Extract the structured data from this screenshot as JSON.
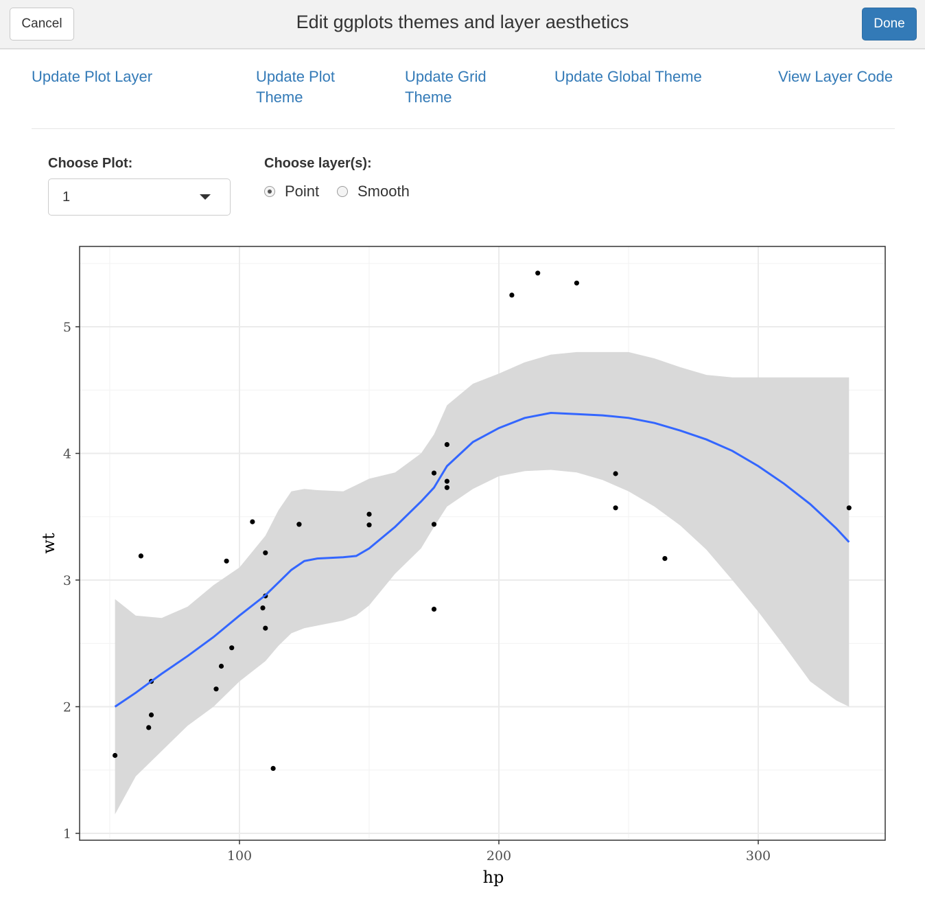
{
  "header": {
    "cancel_label": "Cancel",
    "title": "Edit ggplots themes and layer aesthetics",
    "done_label": "Done",
    "done_color": "#337ab7"
  },
  "tabs": [
    {
      "line1": "Update Plot Layer",
      "line2": ""
    },
    {
      "line1": "Update Plot",
      "line2": "Theme"
    },
    {
      "line1": "Update Grid",
      "line2": "Theme"
    },
    {
      "line1": "Update Global Theme",
      "line2": ""
    },
    {
      "line1": "View Layer Code",
      "line2": ""
    }
  ],
  "controls": {
    "choose_plot_label": "Choose Plot:",
    "choose_plot_value": "1",
    "choose_layer_label": "Choose layer(s):",
    "layers": [
      {
        "label": "Point",
        "checked": true
      },
      {
        "label": "Smooth",
        "checked": false
      }
    ]
  },
  "chart_data": {
    "type": "scatter",
    "xlabel": "hp",
    "ylabel": "wt",
    "xlim": [
      40,
      348
    ],
    "ylim": [
      1,
      5.6
    ],
    "xticks": [
      100,
      200,
      300
    ],
    "yticks": [
      1,
      2,
      3,
      4,
      5
    ],
    "grid": true,
    "legend": "none",
    "point_color": "#000000",
    "smooth_color": "#3366ff",
    "ribbon_color": "#d9d9d9",
    "points": [
      [
        110,
        2.62
      ],
      [
        110,
        2.875
      ],
      [
        93,
        2.32
      ],
      [
        110,
        3.215
      ],
      [
        175,
        3.44
      ],
      [
        105,
        3.46
      ],
      [
        245,
        3.57
      ],
      [
        62,
        3.19
      ],
      [
        95,
        3.15
      ],
      [
        123,
        3.44
      ],
      [
        123,
        3.44
      ],
      [
        180,
        4.07
      ],
      [
        180,
        3.73
      ],
      [
        180,
        3.78
      ],
      [
        205,
        5.25
      ],
      [
        215,
        5.424
      ],
      [
        230,
        5.345
      ],
      [
        66,
        2.2
      ],
      [
        52,
        1.615
      ],
      [
        65,
        1.835
      ],
      [
        97,
        2.465
      ],
      [
        150,
        3.52
      ],
      [
        150,
        3.435
      ],
      [
        245,
        3.84
      ],
      [
        175,
        3.845
      ],
      [
        66,
        1.935
      ],
      [
        91,
        2.14
      ],
      [
        113,
        1.513
      ],
      [
        264,
        3.17
      ],
      [
        175,
        2.77
      ],
      [
        335,
        3.57
      ],
      [
        109,
        2.78
      ]
    ],
    "smooth": {
      "x": [
        52,
        60,
        70,
        80,
        90,
        100,
        110,
        115,
        120,
        125,
        130,
        140,
        145,
        150,
        160,
        170,
        175,
        180,
        190,
        200,
        210,
        220,
        230,
        240,
        250,
        260,
        270,
        280,
        290,
        300,
        310,
        320,
        330,
        335
      ],
      "y": [
        2.0,
        2.11,
        2.26,
        2.4,
        2.55,
        2.72,
        2.88,
        2.98,
        3.08,
        3.15,
        3.17,
        3.18,
        3.19,
        3.25,
        3.42,
        3.62,
        3.73,
        3.9,
        4.09,
        4.2,
        4.28,
        4.32,
        4.31,
        4.3,
        4.28,
        4.24,
        4.18,
        4.11,
        4.02,
        3.9,
        3.76,
        3.6,
        3.41,
        3.3
      ],
      "lower": [
        1.15,
        1.45,
        1.65,
        1.85,
        2.0,
        2.2,
        2.36,
        2.48,
        2.58,
        2.62,
        2.64,
        2.68,
        2.72,
        2.8,
        3.05,
        3.25,
        3.42,
        3.58,
        3.72,
        3.82,
        3.86,
        3.87,
        3.85,
        3.79,
        3.7,
        3.58,
        3.43,
        3.24,
        3.0,
        2.75,
        2.48,
        2.2,
        2.05,
        2.0
      ],
      "upper": [
        2.85,
        2.72,
        2.7,
        2.79,
        2.96,
        3.1,
        3.35,
        3.55,
        3.7,
        3.72,
        3.71,
        3.7,
        3.75,
        3.8,
        3.85,
        4.0,
        4.15,
        4.38,
        4.55,
        4.63,
        4.72,
        4.78,
        4.8,
        4.8,
        4.8,
        4.75,
        4.68,
        4.62,
        4.6,
        4.6,
        4.6,
        4.6,
        4.6,
        4.6
      ]
    }
  }
}
